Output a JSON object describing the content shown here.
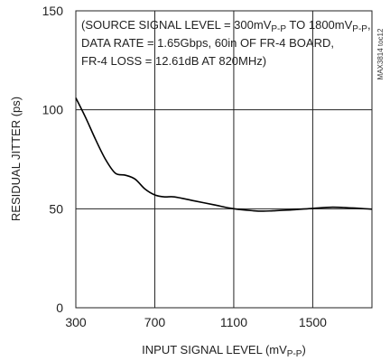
{
  "chart_data": {
    "type": "line",
    "xlabel": {
      "pre": "INPUT SIGNAL LEVEL (mV",
      "sub": "P-P",
      "post": ")"
    },
    "ylabel": "RESIDUAL JITTER (ps)",
    "xlim": [
      300,
      1800
    ],
    "ylim": [
      0,
      150
    ],
    "x_ticks": [
      300,
      700,
      1100,
      1500
    ],
    "y_ticks": [
      0,
      50,
      100,
      150
    ],
    "grid": true,
    "annotation": {
      "line1": {
        "a": "(SOURCE SIGNAL LEVEL = 300mV",
        "sub1": "P-P",
        "b": " TO 1800mV",
        "sub2": "P-P",
        "c": ","
      },
      "line2": "DATA RATE = 1.65Gbps, 60in OF FR-4 BOARD,",
      "line3": "FR-4 LOSS = 12.61dB AT 820MHz)"
    },
    "figure_code": "MAX3814 toc12",
    "series": [
      {
        "color": "#000000",
        "x": [
          300,
          350,
          400,
          450,
          500,
          550,
          600,
          650,
          700,
          750,
          800,
          900,
          1000,
          1100,
          1200,
          1250,
          1300,
          1400,
          1500,
          1600,
          1700,
          1800
        ],
        "y": [
          106,
          96,
          85,
          75,
          68,
          67,
          65,
          60,
          57,
          56,
          56,
          54,
          52,
          50,
          49,
          48.8,
          49,
          49.5,
          50.2,
          50.8,
          50.4,
          49.8
        ]
      }
    ]
  }
}
